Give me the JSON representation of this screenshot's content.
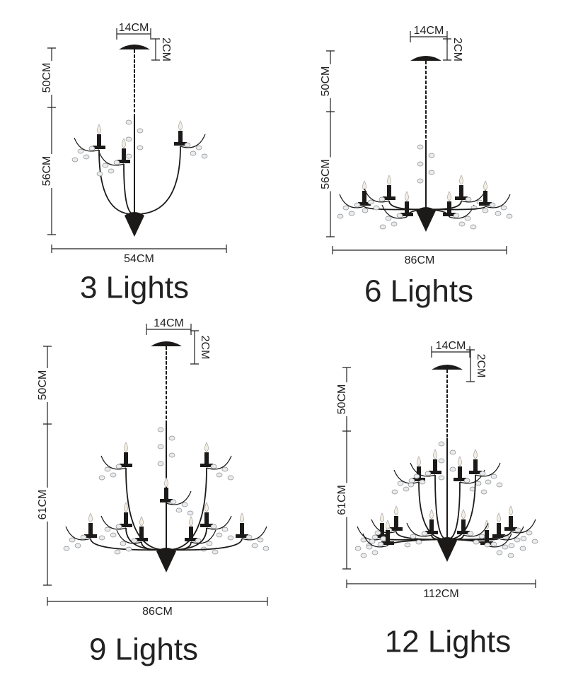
{
  "panels": [
    {
      "canopy_width": "14CM",
      "canopy_height": "2CM",
      "chain_length": "50CM",
      "body_height": "56CM",
      "width": "54CM",
      "caption": "3 Lights"
    },
    {
      "canopy_width": "14CM",
      "canopy_height": "2CM",
      "chain_length": "50CM",
      "body_height": "56CM",
      "width": "86CM",
      "caption": "6 Lights"
    },
    {
      "canopy_width": "14CM",
      "canopy_height": "2CM",
      "chain_length": "50CM",
      "body_height": "61CM",
      "width": "86CM",
      "caption": "9 Lights"
    },
    {
      "canopy_width": "14CM",
      "canopy_height": "2CM",
      "chain_length": "50CM",
      "body_height": "61CM",
      "width": "112CM",
      "caption": "12 Lights"
    }
  ]
}
